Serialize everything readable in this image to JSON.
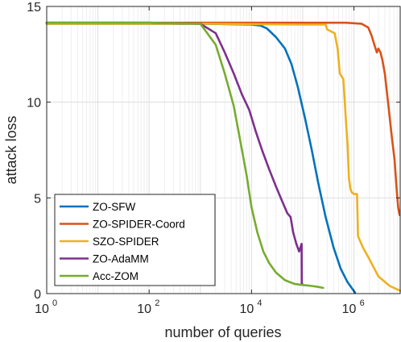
{
  "chart_data": {
    "type": "line",
    "xlabel": "number of queries",
    "ylabel": "attack loss",
    "xscale": "log",
    "xlim": [
      1,
      8000000
    ],
    "ylim": [
      0,
      15
    ],
    "grid": true,
    "legend_position": "bottom-left",
    "x_ticks": [
      {
        "value": 1,
        "base": "10",
        "exp": "0"
      },
      {
        "value": 100,
        "base": "10",
        "exp": "2"
      },
      {
        "value": 10000,
        "base": "10",
        "exp": "4"
      },
      {
        "value": 1000000,
        "base": "10",
        "exp": "6"
      }
    ],
    "y_ticks": [
      0,
      5,
      10,
      15
    ],
    "series": [
      {
        "name": "ZO-SFW",
        "color": "#0072BD",
        "x": [
          1,
          1000,
          10000,
          15000,
          20000,
          30000,
          45000,
          60000,
          80000,
          110000,
          150000,
          200000,
          280000,
          400000,
          550000,
          750000,
          900000,
          1050000
        ],
        "y": [
          14.1,
          14.1,
          14.05,
          14.0,
          13.85,
          13.4,
          12.8,
          12.0,
          10.8,
          9.2,
          7.5,
          5.8,
          4.0,
          2.4,
          1.3,
          0.6,
          0.3,
          0.05
        ]
      },
      {
        "name": "ZO-SPIDER-Coord",
        "color": "#D95319",
        "x": [
          1,
          1000,
          100000,
          700000,
          1400000,
          1900000,
          2200000,
          2500000,
          2800000,
          3000000,
          3300000,
          3600000,
          4000000,
          4500000,
          5000000,
          5600000,
          6200000,
          6800000,
          7300000,
          7800000
        ],
        "y": [
          14.15,
          14.15,
          14.15,
          14.15,
          14.1,
          13.9,
          13.5,
          13.0,
          12.6,
          12.8,
          12.6,
          12.2,
          11.5,
          10.3,
          9.2,
          8.0,
          7.0,
          5.5,
          4.5,
          4.1
        ]
      },
      {
        "name": "SZO-SPIDER",
        "color": "#EDB120",
        "x": [
          1,
          1000,
          100000,
          280000,
          300000,
          420000,
          480000,
          530000,
          620000,
          700000,
          750000,
          800000,
          850000,
          900000,
          1000000,
          1150000,
          1200000,
          1500000,
          2000000,
          3000000,
          5000000,
          8000000
        ],
        "y": [
          14.1,
          14.1,
          14.05,
          14.05,
          13.8,
          13.6,
          12.8,
          11.5,
          11.2,
          9.0,
          7.8,
          6.0,
          5.5,
          5.3,
          5.2,
          5.2,
          3.0,
          2.4,
          1.8,
          0.9,
          0.4,
          0.15
        ]
      },
      {
        "name": "ZO-AdaMM",
        "color": "#7E2F8E",
        "x": [
          1,
          100,
          1000,
          2000,
          3000,
          4500,
          6500,
          9000,
          12000,
          16000,
          22000,
          30000,
          40000,
          50000,
          58000,
          65000,
          75000,
          85000,
          95000,
          96000,
          98000
        ],
        "y": [
          14.15,
          14.15,
          14.1,
          13.6,
          12.6,
          11.5,
          10.4,
          9.6,
          8.5,
          7.5,
          6.5,
          5.6,
          4.8,
          4.2,
          4.0,
          3.2,
          2.6,
          2.2,
          2.6,
          0.5,
          0.5
        ]
      },
      {
        "name": "Acc-ZOM",
        "color": "#77AC30",
        "x": [
          1,
          100,
          1000,
          2000,
          3000,
          4500,
          6000,
          8000,
          10000,
          13000,
          17000,
          22000,
          30000,
          45000,
          70000,
          100000,
          150000,
          200000,
          250000
        ],
        "y": [
          14.15,
          14.15,
          14.1,
          13.0,
          11.5,
          9.8,
          8.0,
          6.2,
          4.5,
          3.2,
          2.2,
          1.6,
          1.1,
          0.7,
          0.5,
          0.45,
          0.4,
          0.35,
          0.3
        ]
      }
    ]
  }
}
